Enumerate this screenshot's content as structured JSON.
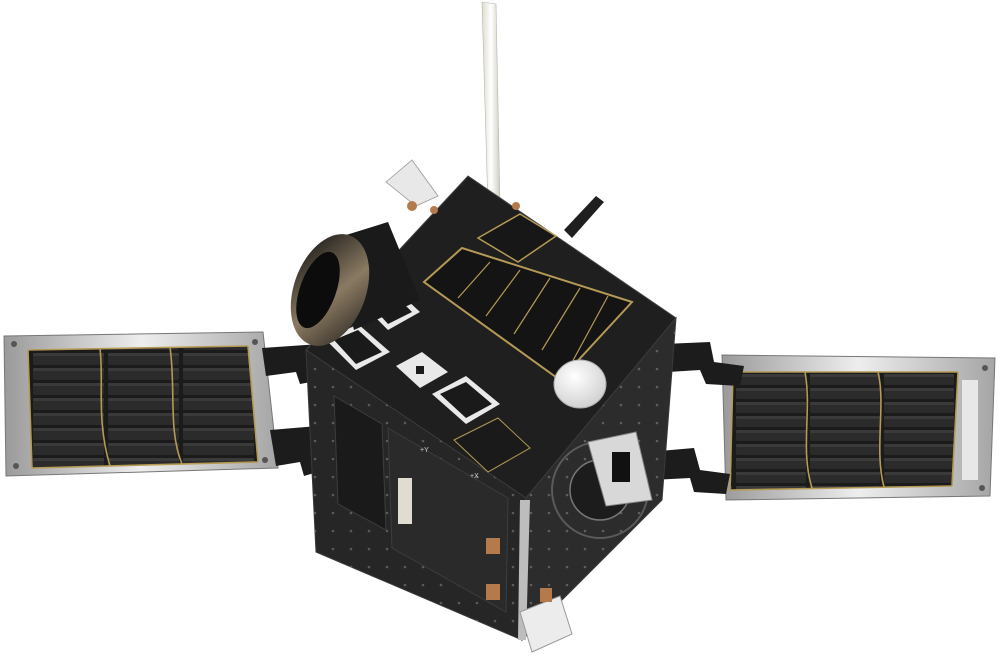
{
  "scene": {
    "subject": "satellite",
    "background": "#ffffff"
  },
  "colors": {
    "body_black": "#1e1e1e",
    "body_dark": "#2b2b2b",
    "solar_cell": "#2a2a2a",
    "gold_trace": "#b59a55",
    "panel_frame": "#c9c9c9",
    "copper": "#b57a4c",
    "antenna": "#e8e8e0"
  },
  "body_markings": {
    "edge_text_1": "+Y",
    "edge_text_2": "+X"
  }
}
